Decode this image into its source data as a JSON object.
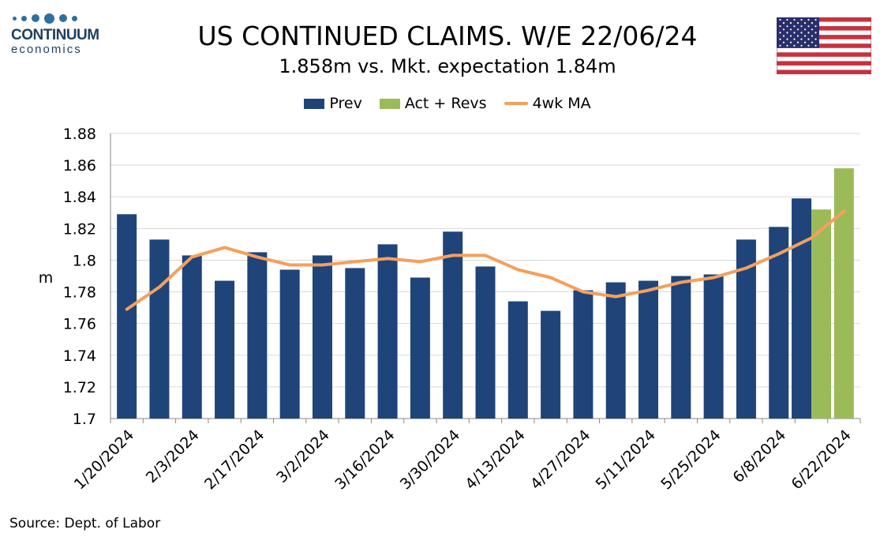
{
  "logo": {
    "name": "CONTINUUM",
    "sub": "economics"
  },
  "title": "US CONTINUED CLAIMS. W/E 22/06/24",
  "subtitle": "1.858m vs. Mkt. expectation 1.84m",
  "source": "Source: Dept. of Labor",
  "flag_icon": "us-flag-icon",
  "colors": {
    "prev": "#1f4479",
    "act": "#9bbb59",
    "ma": "#f4a05c",
    "grid": "#d9d9d9"
  },
  "chart_data": {
    "type": "bar",
    "ylabel": "m",
    "ylim": [
      1.7,
      1.88
    ],
    "yticks": [
      "1.7",
      "1.72",
      "1.74",
      "1.76",
      "1.78",
      "1.8",
      "1.82",
      "1.84",
      "1.86",
      "1.88"
    ],
    "x_tick_labels": [
      "1/20/2024",
      "2/3/2024",
      "2/17/2024",
      "3/2/2024",
      "3/16/2024",
      "3/30/2024",
      "4/13/2024",
      "4/27/2024",
      "5/11/2024",
      "5/25/2024",
      "6/8/2024",
      "6/22/2024"
    ],
    "legend": [
      "Prev",
      "Act + Revs",
      "4wk MA"
    ],
    "legend_position": "top",
    "grid": true,
    "series": [
      {
        "name": "Prev",
        "kind": "bar",
        "values": [
          1.829,
          1.813,
          1.803,
          1.787,
          1.805,
          1.794,
          1.803,
          1.795,
          1.81,
          1.789,
          1.818,
          1.796,
          1.774,
          1.768,
          1.781,
          1.786,
          1.787,
          1.79,
          1.791,
          1.813,
          1.821,
          1.839,
          null
        ]
      },
      {
        "name": "Act + Revs",
        "kind": "bar",
        "values": [
          null,
          null,
          null,
          null,
          null,
          null,
          null,
          null,
          null,
          null,
          null,
          null,
          null,
          null,
          null,
          null,
          null,
          null,
          null,
          null,
          null,
          1.832,
          1.858
        ]
      },
      {
        "name": "4wk MA",
        "kind": "line",
        "values": [
          1.769,
          1.783,
          1.802,
          1.808,
          1.802,
          1.797,
          1.797,
          1.799,
          1.801,
          1.799,
          1.803,
          1.803,
          1.794,
          1.789,
          1.78,
          1.777,
          1.781,
          1.786,
          1.789,
          1.795,
          1.804,
          1.814,
          1.831
        ]
      }
    ]
  }
}
